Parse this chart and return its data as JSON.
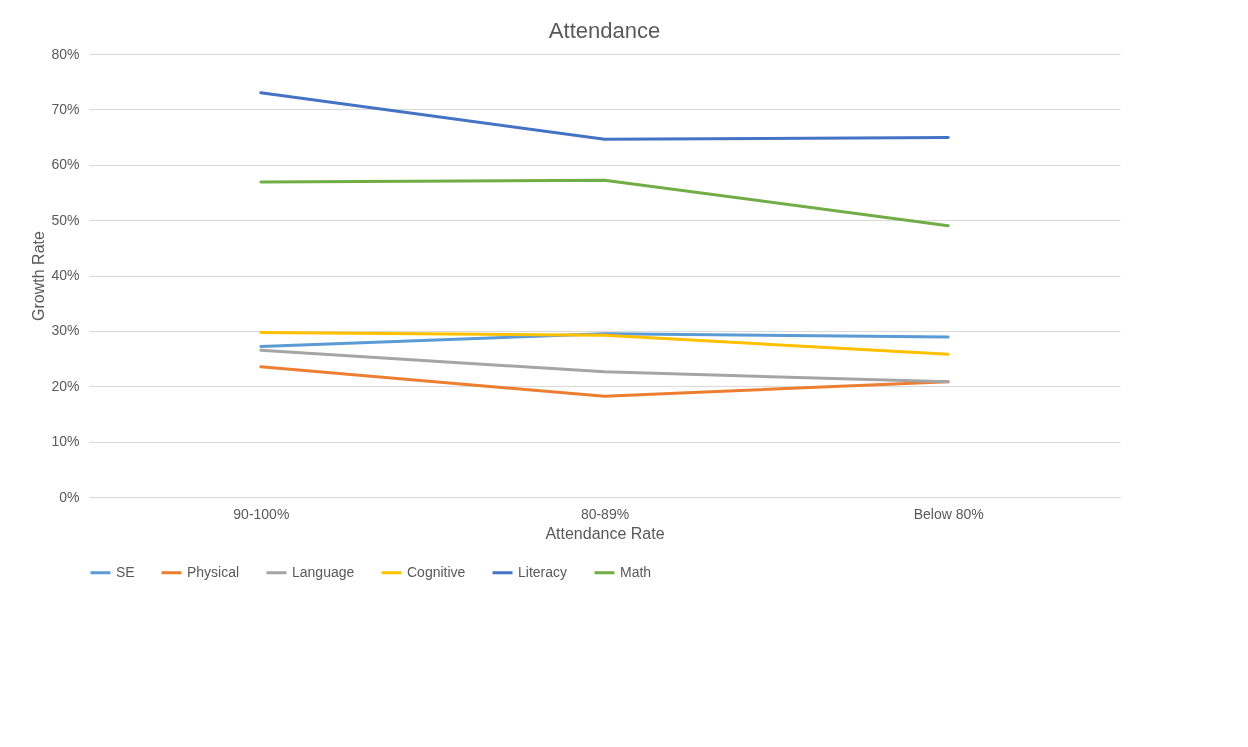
{
  "chart_data": {
    "type": "line",
    "title": "Attendance",
    "xlabel": "Attendance Rate",
    "ylabel": "Growth Rate",
    "categories": [
      "90-100%",
      "80-89%",
      "Below 80%"
    ],
    "series": [
      {
        "name": "SE",
        "color": "#5b9bd5",
        "values": [
          27.2,
          29.5,
          28.9
        ]
      },
      {
        "name": "Physical",
        "color": "#ed7d31",
        "values": [
          23.5,
          18.2,
          20.8
        ]
      },
      {
        "name": "Language",
        "color": "#a5a5a5",
        "values": [
          26.5,
          22.6,
          20.8
        ]
      },
      {
        "name": "Cognitive",
        "color": "#ffc000",
        "values": [
          29.7,
          29.2,
          25.8
        ]
      },
      {
        "name": "Literacy",
        "color": "#4472c4",
        "values": [
          73,
          64.6,
          64.9
        ]
      },
      {
        "name": "Math",
        "color": "#70ad47",
        "values": [
          56.9,
          57.2,
          49
        ]
      }
    ],
    "ylim": [
      0,
      80
    ],
    "yticks": [
      {
        "value": 0,
        "label": "0%"
      },
      {
        "value": 10,
        "label": "10%"
      },
      {
        "value": 20,
        "label": "20%"
      },
      {
        "value": 30,
        "label": "30%"
      },
      {
        "value": 40,
        "label": "40%"
      },
      {
        "value": 50,
        "label": "50%"
      },
      {
        "value": 60,
        "label": "60%"
      },
      {
        "value": 70,
        "label": "70%"
      },
      {
        "value": 80,
        "label": "80%"
      }
    ],
    "grid": "y",
    "legend": "bottom",
    "marker": "none",
    "line_style": "solid"
  }
}
